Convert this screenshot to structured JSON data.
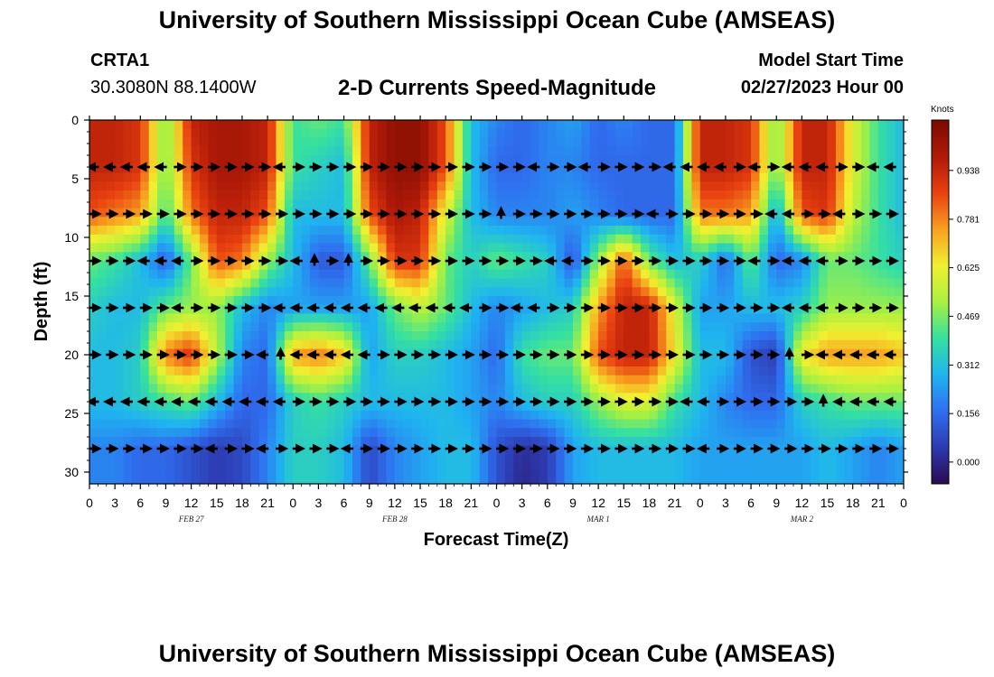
{
  "page": {
    "title": "University of Southern Mississippi Ocean Cube (AMSEAS)",
    "station_id": "CRTA1",
    "station_coords": "30.3080N  88.1400W",
    "chart_title": "2-D Currents Speed-Magnitude",
    "model_start_label": "Model Start Time",
    "model_start_value": "02/27/2023 Hour 00",
    "bottom_title": "University of Southern Mississippi Ocean Cube (AMSEAS)"
  },
  "colors": {
    "colormap": [
      "#2a0a50",
      "#2d3ab0",
      "#2f6ff0",
      "#1fb4f0",
      "#35e0a0",
      "#a8f040",
      "#f0f030",
      "#f8a020",
      "#e84010",
      "#b01a08",
      "#7a0a00"
    ]
  },
  "chart_data": {
    "type": "heatmap",
    "title": "2-D Currents Speed-Magnitude",
    "xlabel": "Forecast Time(Z)",
    "ylabel": "Depth (ft)",
    "x_tick_labels": [
      "0",
      "3",
      "6",
      "9",
      "12",
      "15",
      "18",
      "21",
      "0",
      "3",
      "6",
      "9",
      "12",
      "15",
      "18",
      "21",
      "0",
      "3",
      "6",
      "9",
      "12",
      "15",
      "18",
      "21",
      "0",
      "3",
      "6",
      "9",
      "12",
      "15",
      "18",
      "21",
      "0"
    ],
    "x_range_hours": [
      0,
      96
    ],
    "date_labels": [
      {
        "label": "FEB 27",
        "hour": 12
      },
      {
        "label": "FEB 28",
        "hour": 36
      },
      {
        "label": "MAR 1",
        "hour": 60
      },
      {
        "label": "MAR 2",
        "hour": 84
      }
    ],
    "y_ticks": [
      0,
      5,
      10,
      15,
      20,
      25,
      30
    ],
    "y_range_ft": [
      0,
      31
    ],
    "colorbar": {
      "label": "Knots",
      "ticks": [
        "0.000",
        "0.156",
        "0.312",
        "0.469",
        "0.625",
        "0.781",
        "0.938"
      ],
      "range": [
        -0.07,
        1.1
      ]
    },
    "depths_ft": [
      0,
      4,
      8,
      12,
      16,
      20,
      24,
      28,
      31
    ],
    "hours": [
      0,
      3,
      6,
      9,
      12,
      15,
      18,
      21,
      24,
      27,
      30,
      33,
      36,
      39,
      42,
      45,
      48,
      51,
      54,
      57,
      60,
      63,
      66,
      69,
      72,
      75,
      78,
      81,
      84,
      87,
      90,
      93,
      96
    ],
    "speed_knots": [
      [
        0.95,
        0.95,
        0.9,
        0.45,
        0.95,
        1.0,
        1.0,
        0.95,
        0.4,
        0.45,
        0.4,
        0.95,
        1.05,
        1.05,
        0.85,
        0.3,
        0.2,
        0.15,
        0.2,
        0.25,
        0.15,
        0.2,
        0.15,
        0.15,
        0.95,
        0.95,
        0.9,
        0.45,
        0.95,
        0.95,
        0.6,
        0.4,
        0.3
      ],
      [
        0.95,
        0.95,
        0.9,
        0.45,
        0.9,
        1.0,
        1.0,
        0.95,
        0.4,
        0.35,
        0.3,
        0.95,
        1.05,
        1.05,
        0.85,
        0.3,
        0.15,
        0.15,
        0.2,
        0.2,
        0.15,
        0.15,
        0.15,
        0.15,
        0.95,
        0.95,
        0.9,
        0.45,
        0.95,
        0.95,
        0.6,
        0.4,
        0.3
      ],
      [
        0.85,
        0.8,
        0.75,
        0.4,
        0.8,
        0.95,
        0.95,
        0.85,
        0.3,
        0.3,
        0.3,
        0.85,
        1.0,
        0.95,
        0.6,
        0.3,
        0.2,
        0.2,
        0.2,
        0.25,
        0.2,
        0.15,
        0.15,
        0.15,
        0.8,
        0.8,
        0.75,
        0.25,
        0.85,
        0.9,
        0.55,
        0.4,
        0.3
      ],
      [
        0.45,
        0.4,
        0.3,
        0.12,
        0.45,
        0.85,
        0.8,
        0.5,
        0.3,
        0.12,
        0.12,
        0.45,
        0.9,
        0.9,
        0.45,
        0.35,
        0.45,
        0.4,
        0.35,
        0.1,
        0.5,
        0.85,
        0.45,
        0.3,
        0.35,
        0.15,
        0.45,
        0.15,
        0.2,
        0.45,
        0.45,
        0.4,
        0.35
      ],
      [
        0.35,
        0.3,
        0.3,
        0.45,
        0.5,
        0.5,
        0.3,
        0.2,
        0.25,
        0.25,
        0.25,
        0.25,
        0.45,
        0.55,
        0.45,
        0.3,
        0.2,
        0.25,
        0.3,
        0.35,
        0.75,
        0.95,
        0.95,
        0.6,
        0.25,
        0.25,
        0.3,
        0.3,
        0.35,
        0.5,
        0.5,
        0.5,
        0.5
      ],
      [
        0.3,
        0.3,
        0.35,
        0.8,
        0.9,
        0.55,
        0.2,
        0.15,
        0.75,
        0.8,
        0.7,
        0.25,
        0.35,
        0.35,
        0.3,
        0.25,
        0.15,
        0.4,
        0.45,
        0.45,
        0.85,
        0.95,
        0.95,
        0.65,
        0.3,
        0.3,
        0.1,
        0.05,
        0.65,
        0.75,
        0.75,
        0.75,
        0.7
      ],
      [
        0.3,
        0.3,
        0.35,
        0.4,
        0.45,
        0.3,
        0.15,
        0.15,
        0.35,
        0.4,
        0.35,
        0.3,
        0.3,
        0.3,
        0.3,
        0.25,
        0.2,
        0.3,
        0.35,
        0.35,
        0.5,
        0.6,
        0.6,
        0.4,
        0.3,
        0.2,
        0.15,
        0.15,
        0.35,
        0.4,
        0.45,
        0.45,
        0.45
      ],
      [
        0.2,
        0.2,
        0.15,
        0.15,
        0.1,
        0.05,
        0.08,
        0.2,
        0.35,
        0.35,
        0.3,
        0.08,
        0.2,
        0.25,
        0.3,
        0.3,
        0.1,
        0.02,
        0.05,
        0.25,
        0.3,
        0.3,
        0.3,
        0.3,
        0.25,
        0.25,
        0.25,
        0.25,
        0.25,
        0.3,
        0.25,
        0.2,
        0.25
      ],
      [
        0.2,
        0.2,
        0.15,
        0.15,
        0.1,
        0.05,
        0.08,
        0.2,
        0.35,
        0.35,
        0.3,
        0.08,
        0.2,
        0.25,
        0.3,
        0.3,
        0.1,
        0.0,
        0.05,
        0.25,
        0.3,
        0.3,
        0.3,
        0.3,
        0.25,
        0.25,
        0.25,
        0.25,
        0.25,
        0.3,
        0.25,
        0.2,
        0.25
      ]
    ],
    "arrow_depths_ft": [
      4,
      8,
      12,
      16,
      20,
      24,
      28
    ],
    "arrow_hours": [
      0,
      2,
      4,
      6,
      8,
      10,
      12,
      14,
      16,
      18,
      20,
      22,
      24,
      26,
      28,
      30,
      32,
      34,
      36,
      38,
      40,
      42,
      44,
      46,
      48,
      50,
      52,
      54,
      56,
      58,
      60,
      62,
      64,
      66,
      68,
      70,
      72,
      74,
      76,
      78,
      80,
      82,
      84,
      86,
      88,
      90,
      92,
      94
    ],
    "arrow_directions": [
      "LLLLLRRRRRRLRRRRRRRRRRRRRRLRRLRRRRLLLLRLRLLLRRLL",
      "RRRRRRRRRRRRRRRRRRRRRRRRURRRRRRRRLRRRRRRLLRRLRRR",
      "RRRLLLRRRRRRLURURRRRRRRRRRRLLRRRRRRRRRRLRLLLRRRR",
      "RRRRRLRRRRRLLLLLLLLLLLLRRLLRRRRRRRRRRRRRRLLLRRRR",
      "RRRRRRRRRRLULLLLLRRRRRRRRRRRRRRRRRRRRRRRRURLLLLL",
      "LLLLLLLLLLLLRRRRRRRRRRRRRRRRRRRRRRRLLRRRRRRULLLL",
      "RRRRRRRLRRLRRRRLRRRRRRRRRRRRRRRRRRRRLRRRRRRRRRRR"
    ]
  }
}
